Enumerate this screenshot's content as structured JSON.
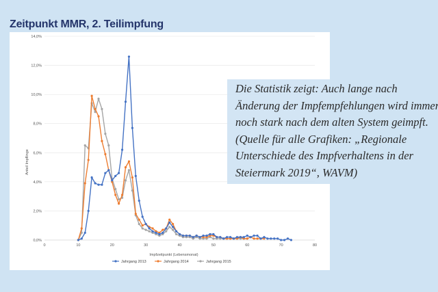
{
  "heading": "Zeitpunkt MMR, 2. Teilimpfung",
  "caption": "Die Statistik zeigt: Auch lange nach Änderung der Impfempfehlungen wird immer noch stark nach dem alten System geimpft. (Quelle für alle Grafiken: „Regionale Unterschiede des Impfverhaltens in der Steiermark 2019“, WAVM)",
  "chart_data": {
    "type": "line",
    "title": "",
    "xlabel": "Impfzeitpunkt (Lebensmonat)",
    "ylabel": "Anteil Impflinge",
    "xlim": [
      0,
      80
    ],
    "ylim": [
      0,
      14
    ],
    "x_ticks": [
      "0",
      "10",
      "20",
      "30",
      "40",
      "50",
      "60",
      "70",
      "80"
    ],
    "y_ticks": [
      "0,0%",
      "2,0%",
      "4,0%",
      "6,0%",
      "8,0%",
      "10,0%",
      "12,0%",
      "14,0%"
    ],
    "grid": "horizontal",
    "legend": "bottom",
    "series": [
      {
        "name": "Jahrgang 2013",
        "color": "#4472c4",
        "points": [
          [
            10,
            0
          ],
          [
            11,
            0.1
          ],
          [
            12,
            0.5
          ],
          [
            13,
            2
          ],
          [
            14,
            4.3
          ],
          [
            15,
            3.9
          ],
          [
            16,
            3.8
          ],
          [
            17,
            3.8
          ],
          [
            18,
            4.6
          ],
          [
            19,
            4.8
          ],
          [
            20,
            4.1
          ],
          [
            21,
            4.4
          ],
          [
            22,
            4.6
          ],
          [
            23,
            6.2
          ],
          [
            24,
            9.5
          ],
          [
            25,
            12.6
          ],
          [
            26,
            7.7
          ],
          [
            27,
            4.4
          ],
          [
            28,
            2.7
          ],
          [
            29,
            1.6
          ],
          [
            30,
            1.1
          ],
          [
            31,
            0.8
          ],
          [
            32,
            0.6
          ],
          [
            33,
            0.5
          ],
          [
            34,
            0.4
          ],
          [
            35,
            0.5
          ],
          [
            36,
            0.8
          ],
          [
            37,
            1.2
          ],
          [
            38,
            0.9
          ],
          [
            39,
            0.6
          ],
          [
            40,
            0.4
          ],
          [
            41,
            0.3
          ],
          [
            42,
            0.3
          ],
          [
            43,
            0.3
          ],
          [
            44,
            0.2
          ],
          [
            45,
            0.3
          ],
          [
            46,
            0.2
          ],
          [
            47,
            0.3
          ],
          [
            48,
            0.3
          ],
          [
            49,
            0.4
          ],
          [
            50,
            0.4
          ],
          [
            51,
            0.2
          ],
          [
            52,
            0.2
          ],
          [
            53,
            0.1
          ],
          [
            54,
            0.2
          ],
          [
            55,
            0.2
          ],
          [
            56,
            0.1
          ],
          [
            57,
            0.2
          ],
          [
            58,
            0.2
          ],
          [
            59,
            0.2
          ],
          [
            60,
            0.3
          ],
          [
            61,
            0.2
          ],
          [
            62,
            0.3
          ],
          [
            63,
            0.3
          ],
          [
            64,
            0.1
          ],
          [
            65,
            0.2
          ],
          [
            66,
            0.1
          ],
          [
            67,
            0.1
          ],
          [
            68,
            0.1
          ],
          [
            69,
            0.1
          ],
          [
            70,
            0
          ],
          [
            71,
            0
          ],
          [
            72,
            0.1
          ],
          [
            73,
            0
          ]
        ]
      },
      {
        "name": "Jahrgang 2014",
        "color": "#ed7d31",
        "points": [
          [
            10,
            0
          ],
          [
            11,
            0.8
          ],
          [
            12,
            3.9
          ],
          [
            13,
            5.5
          ],
          [
            14,
            9.9
          ],
          [
            15,
            9
          ],
          [
            16,
            8.5
          ],
          [
            17,
            6.8
          ],
          [
            18,
            5.9
          ],
          [
            19,
            4.8
          ],
          [
            20,
            4
          ],
          [
            21,
            3.1
          ],
          [
            22,
            2.5
          ],
          [
            23,
            3.1
          ],
          [
            24,
            5
          ],
          [
            25,
            5.4
          ],
          [
            26,
            4.3
          ],
          [
            27,
            1.8
          ],
          [
            28,
            1.4
          ],
          [
            29,
            1
          ],
          [
            30,
            1.1
          ],
          [
            31,
            0.9
          ],
          [
            32,
            0.8
          ],
          [
            33,
            0.6
          ],
          [
            34,
            0.5
          ],
          [
            35,
            0.7
          ],
          [
            36,
            0.8
          ],
          [
            37,
            1.4
          ],
          [
            38,
            1.1
          ],
          [
            39,
            0.6
          ],
          [
            40,
            0.4
          ],
          [
            41,
            0.3
          ],
          [
            42,
            0.3
          ],
          [
            43,
            0.3
          ],
          [
            44,
            0.2
          ],
          [
            45,
            0.3
          ],
          [
            46,
            0.2
          ],
          [
            47,
            0.2
          ],
          [
            48,
            0.2
          ],
          [
            49,
            0.3
          ],
          [
            50,
            0.3
          ],
          [
            51,
            0.2
          ],
          [
            52,
            0.2
          ],
          [
            53,
            0.1
          ],
          [
            54,
            0.1
          ],
          [
            55,
            0.1
          ],
          [
            56,
            0.1
          ],
          [
            57,
            0.1
          ],
          [
            58,
            0.2
          ],
          [
            59,
            0.1
          ],
          [
            60,
            0.1
          ],
          [
            61,
            0.2
          ],
          [
            62,
            0.1
          ],
          [
            63,
            0.1
          ],
          [
            64,
            0.1
          ],
          [
            65,
            0.1
          ]
        ]
      },
      {
        "name": "Jahrgang 2015",
        "color": "#a5a5a5",
        "points": [
          [
            10,
            0
          ],
          [
            11,
            0.5
          ],
          [
            12,
            6.5
          ],
          [
            13,
            6.3
          ],
          [
            14,
            9.4
          ],
          [
            15,
            8.8
          ],
          [
            16,
            9.7
          ],
          [
            17,
            9
          ],
          [
            18,
            7.3
          ],
          [
            19,
            6.5
          ],
          [
            20,
            4.2
          ],
          [
            21,
            3.5
          ],
          [
            22,
            2.8
          ],
          [
            23,
            2.9
          ],
          [
            24,
            4.1
          ],
          [
            25,
            4.8
          ],
          [
            26,
            3.4
          ],
          [
            27,
            1.7
          ],
          [
            28,
            1.1
          ],
          [
            29,
            0.8
          ],
          [
            30,
            0.7
          ],
          [
            31,
            0.6
          ],
          [
            32,
            0.5
          ],
          [
            33,
            0.4
          ],
          [
            34,
            0.3
          ],
          [
            35,
            0.4
          ],
          [
            36,
            0.6
          ],
          [
            37,
            0.9
          ],
          [
            38,
            0.7
          ],
          [
            39,
            0.4
          ],
          [
            40,
            0.3
          ],
          [
            41,
            0.2
          ],
          [
            42,
            0.2
          ],
          [
            43,
            0.2
          ],
          [
            44,
            0.1
          ],
          [
            45,
            0.2
          ],
          [
            46,
            0.1
          ],
          [
            47,
            0.1
          ],
          [
            48,
            0.1
          ],
          [
            49,
            0.2
          ],
          [
            50,
            0.1
          ],
          [
            51,
            0.1
          ],
          [
            52,
            0.1
          ],
          [
            53,
            0.1
          ],
          [
            54,
            0.1
          ],
          [
            55,
            0.1
          ],
          [
            56,
            0.1
          ],
          [
            57,
            0.1
          ],
          [
            58,
            0.1
          ],
          [
            59,
            0.1
          ],
          [
            60,
            0.1
          ]
        ]
      }
    ]
  }
}
